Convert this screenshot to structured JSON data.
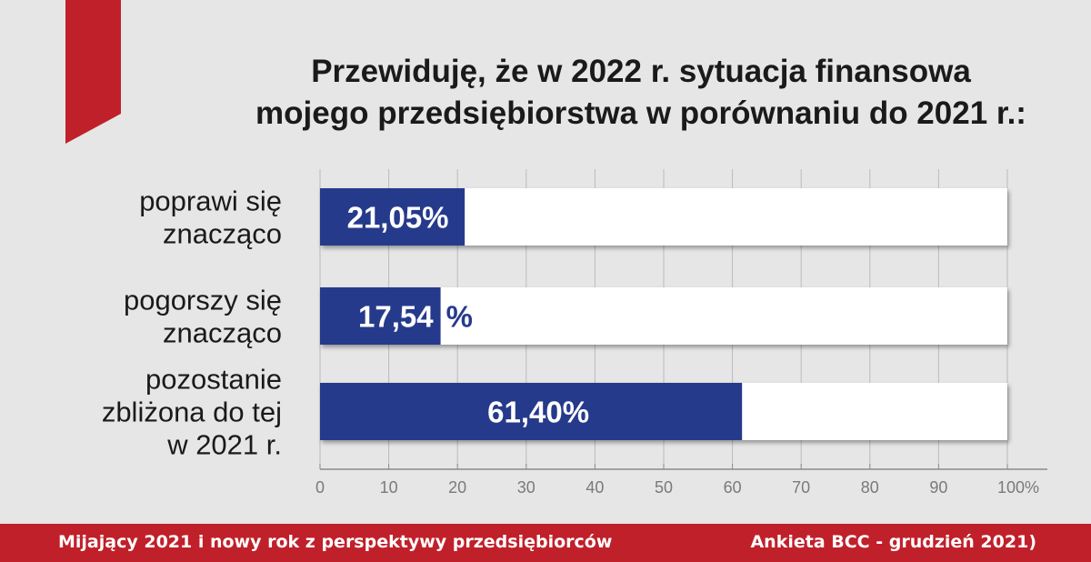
{
  "title_lines": [
    "Przewiduję, że w 2022 r. sytuacja finansowa",
    "mojego przedsiębiorstwa w porównaniu do 2021 r.:"
  ],
  "colors": {
    "bar": "#263a8c",
    "track": "#ffffff",
    "accent": "#c0202a",
    "background": "#e6e6e6",
    "grid": "#bbbbbb"
  },
  "chart_data": {
    "type": "bar",
    "orientation": "horizontal",
    "categories": [
      [
        "poprawi się",
        "znacząco"
      ],
      [
        "pogorszy się",
        "znacząco"
      ],
      [
        "pozostanie",
        "zbliżona do tej",
        "w 2021 r."
      ]
    ],
    "values": [
      21.05,
      17.54,
      61.4
    ],
    "data_labels": [
      "21,05%",
      "17,54 %",
      "61,40%"
    ],
    "xlim": [
      0,
      100
    ],
    "x_ticks": [
      "0",
      "10",
      "20",
      "30",
      "40",
      "50",
      "60",
      "70",
      "80",
      "90",
      "100%"
    ],
    "grid": true
  },
  "footer": {
    "left": "Mijający 2021 i nowy rok z perspektywy przedsiębiorców",
    "right": "Ankieta BCC - grudzień 2021)"
  }
}
